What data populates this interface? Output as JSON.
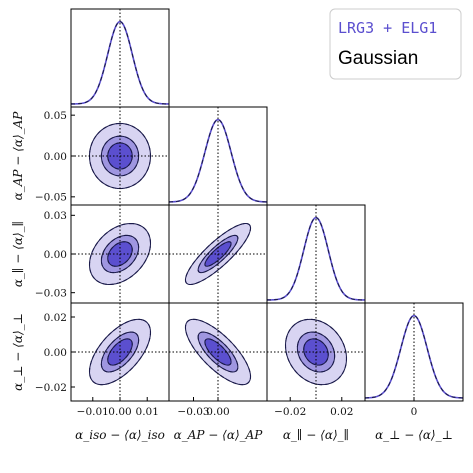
{
  "legend": {
    "entries": [
      "LRG3 + ELG1",
      "Gaussian"
    ],
    "placement": "top-right"
  },
  "colors": {
    "c1": "#d8d4f2",
    "c2": "#9f96e0",
    "c3": "#5b4fcf",
    "line": "#1a1a4a"
  },
  "chart_data": {
    "type": "corner",
    "params": [
      {
        "name": "alpha_iso",
        "xlabel": "α_iso − ⟨α⟩_iso",
        "ylabel": "",
        "range": [
          -0.018,
          0.018
        ],
        "ticks": [
          -0.01,
          0.0,
          0.01
        ],
        "tick_labels": [
          "−0.01",
          "0.00",
          "0.01"
        ],
        "sigma": 0.0045,
        "mean": 0.0
      },
      {
        "name": "alpha_AP",
        "xlabel": "α_AP − ⟨α⟩_AP",
        "ylabel": "α_AP − ⟨α⟩_AP",
        "range": [
          -0.06,
          0.06
        ],
        "ticks": [
          -0.03,
          0.0
        ],
        "tick_labels": [
          "−0.03",
          "0.00"
        ],
        "yticks": [
          -0.05,
          0.0,
          0.05
        ],
        "ytick_labels": [
          "−0.05",
          "0.00",
          "0.05"
        ],
        "sigma": 0.016,
        "mean": 0.0
      },
      {
        "name": "alpha_par",
        "xlabel": "α_∥ − ⟨α⟩_∥",
        "ylabel": "α_∥ − ⟨α⟩_∥",
        "range": [
          -0.038,
          0.038
        ],
        "ticks": [
          -0.02,
          0.02
        ],
        "tick_labels": [
          "−0.02",
          "0.02"
        ],
        "yticks": [
          -0.03,
          0.0,
          0.03
        ],
        "ytick_labels": [
          "−0.03",
          "0.00",
          "0.03"
        ],
        "sigma": 0.0095,
        "mean": 0.0
      },
      {
        "name": "alpha_perp",
        "xlabel": "α_⊥ − ⟨α⟩_⊥",
        "ylabel": "α_⊥ − ⟨α⟩_⊥",
        "range": [
          -0.028,
          0.028
        ],
        "ticks": [
          0.0
        ],
        "tick_labels": [
          "0"
        ],
        "yticks": [
          -0.02,
          0.0,
          0.02
        ],
        "ytick_labels": [
          "−0.02",
          "0.00",
          "0.02"
        ],
        "sigma": 0.0075,
        "mean": 0.0
      }
    ],
    "correlations": [
      {
        "i": 1,
        "j": 0,
        "rho": 0.0
      },
      {
        "i": 2,
        "j": 0,
        "rho": 0.35
      },
      {
        "i": 2,
        "j": 1,
        "rho": 0.85
      },
      {
        "i": 3,
        "j": 0,
        "rho": 0.6
      },
      {
        "i": 3,
        "j": 1,
        "rho": -0.75
      },
      {
        "i": 3,
        "j": 2,
        "rho": -0.2
      }
    ],
    "contour_levels_sigma": [
      1,
      2,
      3
    ],
    "marker_lines": "dotted at mean"
  }
}
